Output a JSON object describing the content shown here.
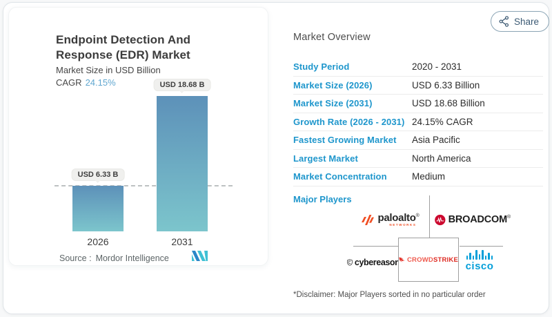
{
  "header": {
    "share_label": "Share"
  },
  "chart_card": {
    "title": "Endpoint Detection And Response (EDR) Market",
    "subtitle": "Market Size in USD Billion",
    "cagr_label": "CAGR",
    "cagr_value": "24.15%",
    "source_label": "Source :",
    "source_name": "Mordor Intelligence"
  },
  "chart_data": {
    "type": "bar",
    "categories": [
      "2026",
      "2031"
    ],
    "values": [
      6.33,
      18.68
    ],
    "value_labels": [
      "USD 6.33 B",
      "USD 18.68 B"
    ],
    "title": "Endpoint Detection And Response (EDR) Market",
    "ylabel": "Market Size in USD Billion",
    "ylim": [
      0,
      20
    ],
    "cagr_percent": 24.15,
    "dashed_reference_value": 6.33,
    "grid": false,
    "bar_gradient_top": "#5d91b9",
    "bar_gradient_bottom": "#7cc5cc"
  },
  "overview": {
    "heading": "Market Overview",
    "rows": [
      {
        "label": "Study Period",
        "value": "2020 - 2031"
      },
      {
        "label": "Market Size (2026)",
        "value": "USD 6.33 Billion"
      },
      {
        "label": "Market Size (2031)",
        "value": "USD 18.68 Billion"
      },
      {
        "label": "Growth Rate (2026 - 2031)",
        "value": "24.15% CAGR"
      },
      {
        "label": "Fastest Growing Market",
        "value": "Asia Pacific"
      },
      {
        "label": "Largest Market",
        "value": "North America"
      },
      {
        "label": "Market Concentration",
        "value": "Medium"
      }
    ],
    "major_players_label": "Major Players",
    "players": {
      "paloalto": {
        "name": "paloalto",
        "sub": "NETWORKS",
        "reg": "®"
      },
      "broadcom": {
        "name": "BROADCOM",
        "reg": "®"
      },
      "cybereason": {
        "name": "cybereason",
        "reg": "™"
      },
      "crowdstrike": {
        "name_part1": "CROWD",
        "name_part2": "STRIKE"
      },
      "cisco": {
        "name": "cisco"
      }
    },
    "disclaimer": "*Disclaimer: Major Players sorted in no particular order"
  },
  "colors": {
    "label_blue": "#1e96cc",
    "cagr_blue": "#61a7d0",
    "paloalto_orange": "#f04e23",
    "broadcom_red": "#cc092f",
    "crowdstrike_red": "#e4372e",
    "cisco_blue": "#049fd9",
    "mordor_teal": "#3fc0d4",
    "mordor_blue": "#2b87c8"
  }
}
